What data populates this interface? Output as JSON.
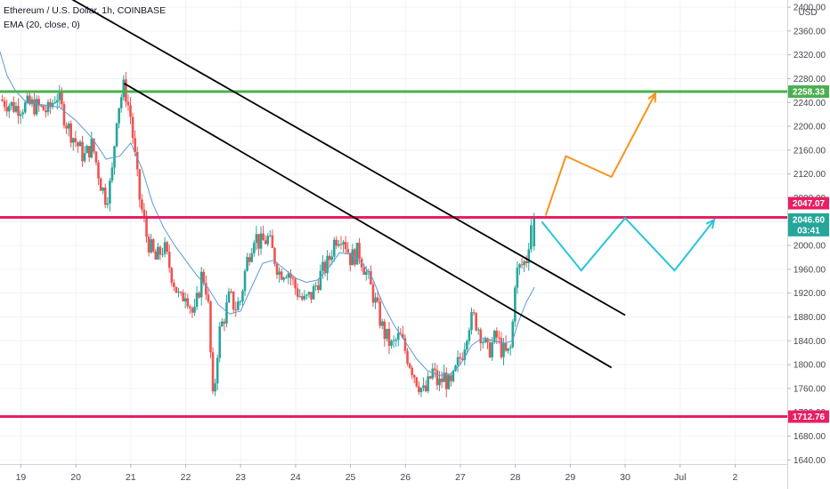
{
  "header": {
    "symbol_line": "Ethereum / U.S. Dollar, 1h, COINBASE",
    "indicator_line": "EMA (20, close, 0)",
    "currency": "USD"
  },
  "colors": {
    "up": "#26a69a",
    "down": "#ef5350",
    "ema": "#5b9bd5",
    "resistance": "#4caf50",
    "level": "#e91e63",
    "trendline": "#000000",
    "bull_path": "#f7931a",
    "range_path": "#26c6da",
    "last_price_bg": "#26a69a"
  },
  "chart_data": {
    "type": "candlestick",
    "title": "Ethereum / U.S. Dollar, 1h, COINBASE",
    "indicator": "EMA (20, close, 0)",
    "x_axis": {
      "ticks": [
        {
          "label": "19",
          "t": 19
        },
        {
          "label": "20",
          "t": 20
        },
        {
          "label": "21",
          "t": 21
        },
        {
          "label": "22",
          "t": 22
        },
        {
          "label": "23",
          "t": 23
        },
        {
          "label": "24",
          "t": 24
        },
        {
          "label": "25",
          "t": 25
        },
        {
          "label": "26",
          "t": 26
        },
        {
          "label": "27",
          "t": 27
        },
        {
          "label": "28",
          "t": 28
        },
        {
          "label": "29",
          "t": 29
        },
        {
          "label": "30",
          "t": 30
        },
        {
          "label": "Jul",
          "t": 31
        },
        {
          "label": "2",
          "t": 32
        }
      ],
      "range": [
        18.62,
        32.95
      ]
    },
    "y_axis": {
      "ticks": [
        1640,
        1680,
        1720,
        1760,
        1800,
        1840,
        1880,
        1920,
        1960,
        2000,
        2040,
        2080,
        2120,
        2160,
        2200,
        2240,
        2280,
        2320,
        2360,
        2400
      ],
      "range": [
        1633,
        2412
      ],
      "currency": "USD"
    },
    "horizontal_levels": [
      {
        "name": "resistance",
        "value": 2258.33,
        "label": "2258.33",
        "color": "#4caf50"
      },
      {
        "name": "breakout",
        "value": 2047.07,
        "label": "2047.07",
        "color": "#e91e63"
      },
      {
        "name": "support",
        "value": 1712.76,
        "label": "1712.76",
        "color": "#e91e63"
      }
    ],
    "last_price": {
      "value": 2046.6,
      "label": "2046.60",
      "countdown": "03:41"
    },
    "trendlines": [
      {
        "name": "trendline-upper",
        "points": [
          [
            19.8,
            2420
          ],
          [
            30.0,
            1883
          ]
        ]
      },
      {
        "name": "trendline-lower",
        "points": [
          [
            20.88,
            2272
          ],
          [
            29.75,
            1795
          ]
        ]
      }
    ],
    "projections": [
      {
        "name": "bull-projection",
        "color": "#f7931a",
        "points": [
          [
            28.55,
            2050
          ],
          [
            28.92,
            2150
          ],
          [
            29.75,
            2115
          ],
          [
            30.55,
            2255
          ]
        ]
      },
      {
        "name": "range-projection",
        "color": "#26c6da",
        "points": [
          [
            28.48,
            2040
          ],
          [
            29.2,
            1958
          ],
          [
            30.0,
            2046
          ],
          [
            30.9,
            1958
          ],
          [
            31.62,
            2043
          ]
        ]
      }
    ],
    "candle_path": [
      [
        18.62,
        2245
      ],
      [
        18.9,
        2232
      ],
      [
        19.2,
        2236
      ],
      [
        19.5,
        2225
      ],
      [
        19.65,
        2255
      ],
      [
        19.85,
        2200
      ],
      [
        20.15,
        2148
      ],
      [
        20.3,
        2170
      ],
      [
        20.45,
        2105
      ],
      [
        20.55,
        2078
      ],
      [
        20.65,
        2110
      ],
      [
        20.75,
        2225
      ],
      [
        20.88,
        2268
      ],
      [
        21.0,
        2215
      ],
      [
        21.15,
        2085
      ],
      [
        21.3,
        2010
      ],
      [
        21.45,
        1975
      ],
      [
        21.6,
        1998
      ],
      [
        21.75,
        1950
      ],
      [
        21.9,
        1905
      ],
      [
        22.0,
        1925
      ],
      [
        22.15,
        1878
      ],
      [
        22.3,
        1955
      ],
      [
        22.4,
        1918
      ],
      [
        22.5,
        1730
      ],
      [
        22.6,
        1850
      ],
      [
        22.7,
        1880
      ],
      [
        22.8,
        1915
      ],
      [
        22.9,
        1895
      ],
      [
        23.0,
        1908
      ],
      [
        23.1,
        1968
      ],
      [
        23.25,
        2020
      ],
      [
        23.35,
        2002
      ],
      [
        23.5,
        2012
      ],
      [
        23.7,
        1955
      ],
      [
        23.85,
        1960
      ],
      [
        24.0,
        1928
      ],
      [
        24.15,
        1905
      ],
      [
        24.3,
        1918
      ],
      [
        24.45,
        1950
      ],
      [
        24.6,
        1972
      ],
      [
        24.72,
        2012
      ],
      [
        24.85,
        2020
      ],
      [
        25.0,
        1978
      ],
      [
        25.15,
        1990
      ],
      [
        25.3,
        1950
      ],
      [
        25.45,
        1905
      ],
      [
        25.6,
        1855
      ],
      [
        25.75,
        1830
      ],
      [
        25.9,
        1848
      ],
      [
        26.05,
        1810
      ],
      [
        26.2,
        1775
      ],
      [
        26.35,
        1750
      ],
      [
        26.5,
        1790
      ],
      [
        26.6,
        1765
      ],
      [
        26.7,
        1780
      ],
      [
        26.82,
        1760
      ],
      [
        26.95,
        1800
      ],
      [
        27.05,
        1825
      ],
      [
        27.15,
        1870
      ],
      [
        27.25,
        1878
      ],
      [
        27.35,
        1858
      ],
      [
        27.5,
        1820
      ],
      [
        27.65,
        1848
      ],
      [
        27.75,
        1825
      ],
      [
        27.85,
        1815
      ],
      [
        27.93,
        1830
      ],
      [
        28.0,
        1950
      ],
      [
        28.1,
        1965
      ],
      [
        28.2,
        1975
      ],
      [
        28.3,
        2046.6
      ]
    ],
    "ema_path": [
      [
        18.62,
        2325
      ],
      [
        18.75,
        2285
      ],
      [
        18.9,
        2260
      ],
      [
        19.1,
        2240
      ],
      [
        19.4,
        2236
      ],
      [
        19.7,
        2232
      ],
      [
        20.0,
        2210
      ],
      [
        20.3,
        2180
      ],
      [
        20.55,
        2145
      ],
      [
        20.8,
        2150
      ],
      [
        21.0,
        2172
      ],
      [
        21.2,
        2130
      ],
      [
        21.4,
        2070
      ],
      [
        21.6,
        2030
      ],
      [
        21.8,
        2000
      ],
      [
        22.0,
        1975
      ],
      [
        22.2,
        1950
      ],
      [
        22.4,
        1930
      ],
      [
        22.6,
        1900
      ],
      [
        22.8,
        1885
      ],
      [
        23.0,
        1890
      ],
      [
        23.2,
        1930
      ],
      [
        23.4,
        1970
      ],
      [
        23.6,
        1975
      ],
      [
        23.8,
        1960
      ],
      [
        24.0,
        1945
      ],
      [
        24.2,
        1938
      ],
      [
        24.4,
        1942
      ],
      [
        24.6,
        1962
      ],
      [
        24.8,
        1988
      ],
      [
        25.0,
        1985
      ],
      [
        25.2,
        1972
      ],
      [
        25.4,
        1945
      ],
      [
        25.6,
        1900
      ],
      [
        25.8,
        1865
      ],
      [
        26.0,
        1838
      ],
      [
        26.2,
        1810
      ],
      [
        26.4,
        1790
      ],
      [
        26.6,
        1782
      ],
      [
        26.8,
        1783
      ],
      [
        27.0,
        1800
      ],
      [
        27.2,
        1832
      ],
      [
        27.4,
        1845
      ],
      [
        27.6,
        1840
      ],
      [
        27.8,
        1836
      ],
      [
        27.95,
        1840
      ],
      [
        28.05,
        1870
      ],
      [
        28.2,
        1905
      ],
      [
        28.35,
        1930
      ]
    ]
  }
}
